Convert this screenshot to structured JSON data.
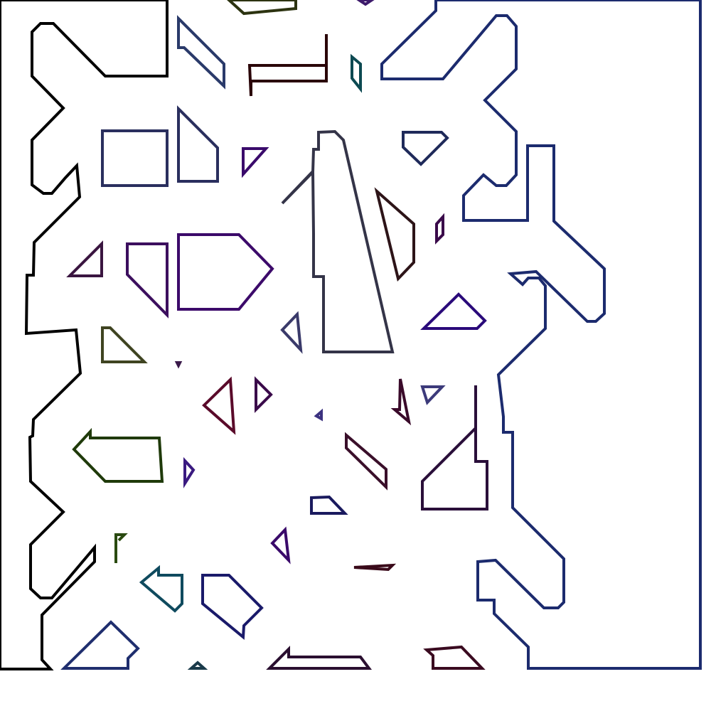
{
  "scene": {
    "background": "#ffffff",
    "shapes": [
      {
        "name": "left-frame-outline",
        "color": "#000000",
        "closed": true
      },
      {
        "name": "right-frame-outline",
        "color": "#1c2b6e",
        "closed": true
      },
      {
        "name": "top-olive-quad",
        "color": "#2c3310",
        "closed": true
      },
      {
        "name": "top-purple-tip",
        "color": "#3d1a6b",
        "closed": true
      },
      {
        "name": "blue-slanted-strip",
        "color": "#2a3a6a",
        "closed": true
      },
      {
        "name": "maroon-bracket",
        "color": "#2a0408",
        "closed": false
      },
      {
        "name": "teal-sliver",
        "color": "#0d4a52",
        "closed": true
      },
      {
        "name": "navy-rectangle",
        "color": "#2a2f5e",
        "closed": true
      },
      {
        "name": "navy-trapezoid",
        "color": "#2a2f5e",
        "closed": true
      },
      {
        "name": "purple-small-triangle",
        "color": "#3a0a6b",
        "closed": true
      },
      {
        "name": "central-tall-shape",
        "color": "#343448",
        "closed": true
      },
      {
        "name": "navy-kite",
        "color": "#1f2a5a",
        "closed": true
      },
      {
        "name": "dark-red-quad",
        "color": "#2d1418",
        "closed": true
      },
      {
        "name": "purple-sliver",
        "color": "#3a0a4a",
        "closed": true
      },
      {
        "name": "plum-triangle-left",
        "color": "#3a1540",
        "closed": true
      },
      {
        "name": "purple-trapezoid",
        "color": "#3c0f5e",
        "closed": true
      },
      {
        "name": "purple-pentagon",
        "color": "#3c0a6a",
        "closed": true
      },
      {
        "name": "indigo-triangle",
        "color": "#2a0a7a",
        "closed": true
      },
      {
        "name": "slate-small-triangle",
        "color": "#3a3a6a",
        "closed": true
      },
      {
        "name": "olive-triangle",
        "color": "#3f4421",
        "closed": true
      },
      {
        "name": "tiny-dot",
        "color": "#3a1a4a",
        "closed": true
      },
      {
        "name": "crimson-triangle",
        "color": "#5a0a2a",
        "closed": true
      },
      {
        "name": "purple-arrow-triangle",
        "color": "#3a0a4a",
        "closed": true
      },
      {
        "name": "slate-tiny-triangle",
        "color": "#3c3a7a",
        "closed": true
      },
      {
        "name": "maroon-sliver",
        "color": "#3a0a2a",
        "closed": true
      },
      {
        "name": "plum-small-triangle",
        "color": "#3c3280",
        "closed": true
      },
      {
        "name": "plum-flag-shape",
        "color": "#2a0f3a",
        "closed": true
      },
      {
        "name": "green-arrow-shape",
        "color": "#1f3a0a",
        "closed": true
      },
      {
        "name": "violet-tiny-triangle",
        "color": "#3a1a80",
        "closed": true
      },
      {
        "name": "plum-parallelogram",
        "color": "#3a0f2a",
        "closed": true
      },
      {
        "name": "navy-small-trapezoid",
        "color": "#1a1a5e",
        "closed": true
      },
      {
        "name": "purple-tall-triangle",
        "color": "#3a0a6a",
        "closed": true
      },
      {
        "name": "maroon-dash",
        "color": "#3a0a1a",
        "closed": true
      },
      {
        "name": "green-hook",
        "color": "#2a4a10",
        "closed": false
      },
      {
        "name": "teal-arrow-shape",
        "color": "#0f4a5e",
        "closed": true
      },
      {
        "name": "navy-pentagon",
        "color": "#1a1a6a",
        "closed": true
      },
      {
        "name": "navy-bottom-pentagon",
        "color": "#1f2e6e",
        "closed": true
      },
      {
        "name": "dark-teal-cap",
        "color": "#1a3a4a",
        "closed": true
      },
      {
        "name": "plum-bottom-trapezoid",
        "color": "#2a0f30",
        "closed": true
      },
      {
        "name": "maroon-bottom-trapezoid",
        "color": "#3a0a20",
        "closed": true
      }
    ]
  }
}
